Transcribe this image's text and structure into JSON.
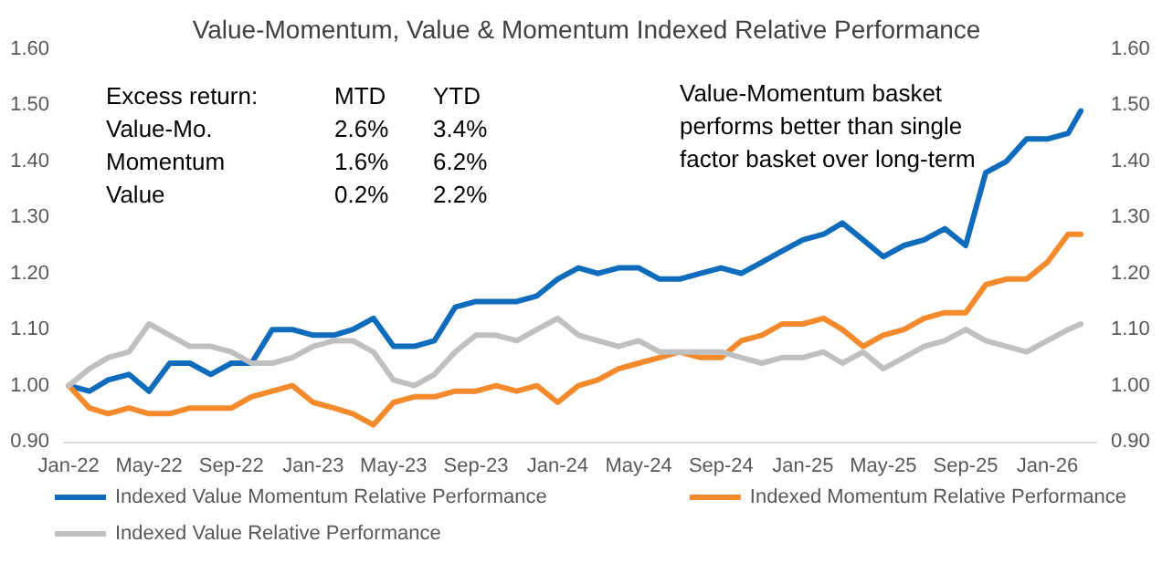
{
  "chart_data": {
    "type": "line",
    "title": "Value-Momentum, Value & Momentum Indexed Relative Performance",
    "x": [
      "2022-01",
      "2022-02",
      "2022-03",
      "2022-04",
      "2022-05",
      "2022-06",
      "2022-07",
      "2022-08",
      "2022-09",
      "2022-10",
      "2022-11",
      "2022-12",
      "2023-01",
      "2023-02",
      "2023-03",
      "2023-04",
      "2023-05",
      "2023-06",
      "2023-07",
      "2023-08",
      "2023-09",
      "2023-10",
      "2023-11",
      "2023-12",
      "2024-01",
      "2024-02",
      "2024-03",
      "2024-04",
      "2024-05",
      "2024-06",
      "2024-07",
      "2024-08",
      "2024-09",
      "2024-10",
      "2024-11",
      "2024-12",
      "2025-01",
      "2025-02",
      "2025-03",
      "2025-04",
      "2025-05",
      "2025-06",
      "2025-07",
      "2025-08",
      "2025-09",
      "2025-10",
      "2025-11",
      "2025-12",
      "2026-01",
      "2026-02",
      "2026-02-20"
    ],
    "series": [
      {
        "name": "Indexed Value Momentum Relative Performance",
        "color": "#0f6cbd",
        "values": [
          1.0,
          0.99,
          1.01,
          1.02,
          0.99,
          1.04,
          1.04,
          1.02,
          1.04,
          1.04,
          1.1,
          1.1,
          1.09,
          1.09,
          1.1,
          1.12,
          1.07,
          1.07,
          1.08,
          1.14,
          1.15,
          1.15,
          1.15,
          1.16,
          1.19,
          1.21,
          1.2,
          1.21,
          1.21,
          1.19,
          1.19,
          1.2,
          1.21,
          1.2,
          1.22,
          1.24,
          1.26,
          1.27,
          1.29,
          1.26,
          1.23,
          1.25,
          1.26,
          1.28,
          1.25,
          1.38,
          1.4,
          1.44,
          1.44,
          1.45,
          1.49
        ]
      },
      {
        "name": "Indexed Momentum Relative Performance",
        "color": "#f58a2c",
        "values": [
          1.0,
          0.96,
          0.95,
          0.96,
          0.95,
          0.95,
          0.96,
          0.96,
          0.96,
          0.98,
          0.99,
          1.0,
          0.97,
          0.96,
          0.95,
          0.93,
          0.97,
          0.98,
          0.98,
          0.99,
          0.99,
          1.0,
          0.99,
          1.0,
          0.97,
          1.0,
          1.01,
          1.03,
          1.04,
          1.05,
          1.06,
          1.05,
          1.05,
          1.08,
          1.09,
          1.11,
          1.11,
          1.12,
          1.1,
          1.07,
          1.09,
          1.1,
          1.12,
          1.13,
          1.13,
          1.18,
          1.19,
          1.19,
          1.22,
          1.27,
          1.27
        ]
      },
      {
        "name": "Indexed Value Relative Performance",
        "color": "#c0c0c0",
        "values": [
          1.0,
          1.03,
          1.05,
          1.06,
          1.11,
          1.09,
          1.07,
          1.07,
          1.06,
          1.04,
          1.04,
          1.05,
          1.07,
          1.08,
          1.08,
          1.06,
          1.01,
          1.0,
          1.02,
          1.06,
          1.09,
          1.09,
          1.08,
          1.1,
          1.12,
          1.09,
          1.08,
          1.07,
          1.08,
          1.06,
          1.06,
          1.06,
          1.06,
          1.05,
          1.04,
          1.05,
          1.05,
          1.06,
          1.04,
          1.06,
          1.03,
          1.05,
          1.07,
          1.08,
          1.1,
          1.08,
          1.07,
          1.06,
          1.08,
          1.1,
          1.11
        ]
      }
    ],
    "xlim": [
      "2021-12-25",
      "2026-03-15"
    ],
    "xticks": [
      {
        "value": "2022-01",
        "label": "Jan-22"
      },
      {
        "value": "2022-05",
        "label": "May-22"
      },
      {
        "value": "2022-09",
        "label": "Sep-22"
      },
      {
        "value": "2023-01",
        "label": "Jan-23"
      },
      {
        "value": "2023-05",
        "label": "May-23"
      },
      {
        "value": "2023-09",
        "label": "Sep-23"
      },
      {
        "value": "2024-01",
        "label": "Jan-24"
      },
      {
        "value": "2024-05",
        "label": "May-24"
      },
      {
        "value": "2024-09",
        "label": "Sep-24"
      },
      {
        "value": "2025-01",
        "label": "Jan-25"
      },
      {
        "value": "2025-05",
        "label": "May-25"
      },
      {
        "value": "2025-09",
        "label": "Sep-25"
      },
      {
        "value": "2026-01",
        "label": "Jan-26"
      }
    ],
    "ylim": [
      0.9,
      1.6
    ],
    "yticks": [
      {
        "value": 0.9,
        "label": "0.90"
      },
      {
        "value": 1.0,
        "label": "1.00"
      },
      {
        "value": 1.1,
        "label": "1.10"
      },
      {
        "value": 1.2,
        "label": "1.20"
      },
      {
        "value": 1.3,
        "label": "1.30"
      },
      {
        "value": 1.4,
        "label": "1.40"
      },
      {
        "value": 1.5,
        "label": "1.50"
      },
      {
        "value": 1.6,
        "label": "1.60"
      }
    ],
    "y2lim": [
      0.9,
      1.6
    ],
    "y2ticks": [
      {
        "value": 0.9,
        "label": "0.90"
      },
      {
        "value": 1.0,
        "label": "1.00"
      },
      {
        "value": 1.1,
        "label": "1.10"
      },
      {
        "value": 1.2,
        "label": "1.20"
      },
      {
        "value": 1.3,
        "label": "1.30"
      },
      {
        "value": 1.4,
        "label": "1.40"
      },
      {
        "value": 1.5,
        "label": "1.50"
      },
      {
        "value": 1.6,
        "label": "1.60"
      }
    ],
    "annotations": [
      "Excess return:\tMTD\tYTD",
      "Value-Mo.\t2.6%\t3.4%",
      "Momentum\t1.6%\t6.2%",
      "Value\t0.2%\t2.2%",
      "Value-Momentum basket\nperforms better than single\nfactor basket over long-term"
    ],
    "legend": "bottom",
    "grid": false,
    "marker": "none",
    "line_style": "solid"
  }
}
